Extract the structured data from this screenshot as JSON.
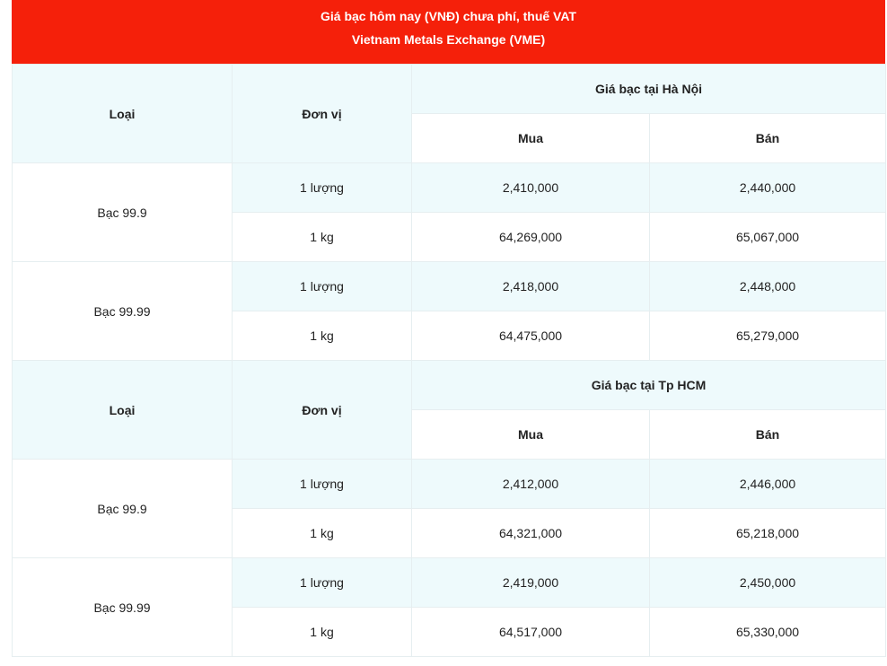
{
  "header": {
    "title": "Giá bạc hôm nay (VNĐ) chưa phí, thuế VAT",
    "subtitle": "Vietnam Metals Exchange (VME)"
  },
  "sections": [
    {
      "columns": {
        "type": "Loại",
        "unit": "Đơn vị",
        "group": "Giá bạc tại Hà Nội",
        "buy": "Mua",
        "sell": "Bán"
      },
      "rows": [
        {
          "type": "Bạc 99.9",
          "items": [
            {
              "unit": "1 lượng",
              "buy": "2,410,000",
              "sell": "2,440,000"
            },
            {
              "unit": "1 kg",
              "buy": "64,269,000",
              "sell": "65,067,000"
            }
          ]
        },
        {
          "type": "Bạc 99.99",
          "items": [
            {
              "unit": "1 lượng",
              "buy": "2,418,000",
              "sell": "2,448,000"
            },
            {
              "unit": "1 kg",
              "buy": "64,475,000",
              "sell": "65,279,000"
            }
          ]
        }
      ]
    },
    {
      "columns": {
        "type": "Loại",
        "unit": "Đơn vị",
        "group": "Giá bạc tại Tp HCM",
        "buy": "Mua",
        "sell": "Bán"
      },
      "rows": [
        {
          "type": "Bạc 99.9",
          "items": [
            {
              "unit": "1 lượng",
              "buy": "2,412,000",
              "sell": "2,446,000"
            },
            {
              "unit": "1 kg",
              "buy": "64,321,000",
              "sell": "65,218,000"
            }
          ]
        },
        {
          "type": "Bạc 99.99",
          "items": [
            {
              "unit": "1 lượng",
              "buy": "2,419,000",
              "sell": "2,450,000"
            },
            {
              "unit": "1 kg",
              "buy": "64,517,000",
              "sell": "65,330,000"
            }
          ]
        }
      ]
    }
  ]
}
